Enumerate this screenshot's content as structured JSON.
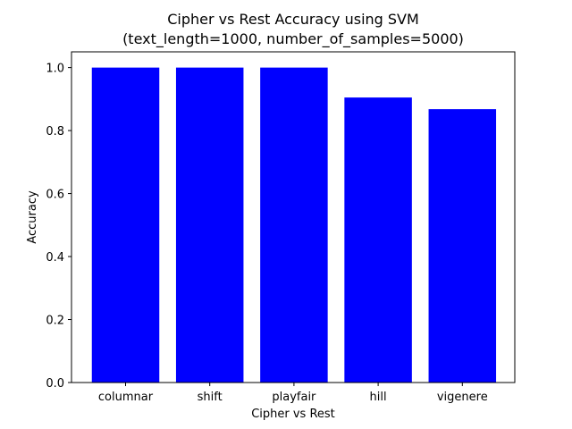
{
  "chart_data": {
    "type": "bar",
    "title_line1": "Cipher vs Rest Accuracy using SVM",
    "title_line2": "(text_length=1000, number_of_samples=5000)",
    "xlabel": "Cipher vs Rest",
    "ylabel": "Accuracy",
    "categories": [
      "columnar",
      "shift",
      "playfair",
      "hill",
      "vigenere"
    ],
    "values": [
      1.0,
      1.0,
      1.0,
      0.905,
      0.868
    ],
    "ylim": [
      0,
      1.05
    ],
    "yticks": [
      "0.0",
      "0.2",
      "0.4",
      "0.6",
      "0.8",
      "1.0"
    ],
    "bar_color": "#0000ff",
    "grid": false,
    "legend": "none"
  }
}
